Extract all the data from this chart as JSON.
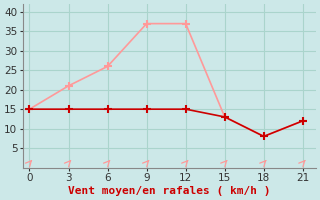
{
  "x": [
    0,
    3,
    6,
    9,
    12,
    15,
    18,
    21
  ],
  "y_moyen": [
    15,
    15,
    15,
    15,
    15,
    13,
    8,
    12
  ],
  "y_rafales": [
    15,
    21,
    26,
    37,
    37,
    13,
    8,
    12
  ],
  "color_moyen": "#cc0000",
  "color_rafales": "#ff9999",
  "bg_color": "#cce8e8",
  "grid_color": "#aad4cc",
  "xlabel": "Vent moyen/en rafales ( km/h )",
  "xlim": [
    -0.5,
    22
  ],
  "ylim": [
    0,
    42
  ],
  "xticks": [
    0,
    3,
    6,
    9,
    12,
    15,
    18,
    21
  ],
  "yticks": [
    5,
    10,
    15,
    20,
    25,
    30,
    35,
    40
  ],
  "xlabel_color": "#cc0000",
  "xlabel_fontsize": 8,
  "tick_fontsize": 7.5
}
